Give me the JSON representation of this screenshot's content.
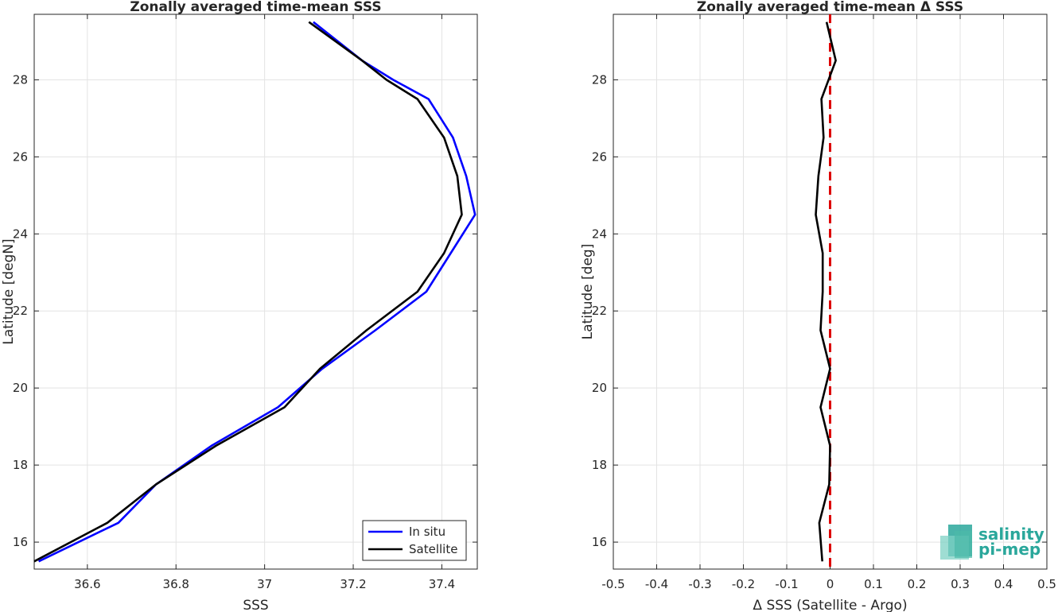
{
  "chart_data": [
    {
      "type": "line",
      "title": "Zonally averaged time-mean SSS",
      "xlabel": "SSS",
      "ylabel": "Latitude [degN]",
      "xlim": [
        36.48,
        37.48
      ],
      "ylim": [
        15.3,
        29.7
      ],
      "xticks": [
        "36.6",
        "36.8",
        "37",
        "37.2",
        "37.4"
      ],
      "xtick_values": [
        36.6,
        36.8,
        37.0,
        37.2,
        37.4
      ],
      "yticks": [
        "16",
        "18",
        "20",
        "22",
        "24",
        "26",
        "28"
      ],
      "ytick_values": [
        16,
        18,
        20,
        22,
        24,
        26,
        28
      ],
      "grid": true,
      "legend": "bottom-right",
      "series": [
        {
          "name": "In situ",
          "color": "#0000ff",
          "x": [
            36.49,
            36.67,
            36.755,
            36.88,
            37.03,
            37.13,
            37.25,
            37.365,
            37.42,
            37.475,
            37.455,
            37.425,
            37.37,
            37.29,
            37.22,
            37.11
          ],
          "y": [
            15.5,
            16.5,
            17.5,
            18.5,
            19.5,
            20.5,
            21.5,
            22.5,
            23.5,
            24.5,
            25.5,
            26.5,
            27.5,
            28.0,
            28.5,
            29.5
          ]
        },
        {
          "name": "Satellite",
          "color": "#000000",
          "x": [
            36.48,
            36.645,
            36.755,
            36.89,
            37.045,
            37.125,
            37.23,
            37.345,
            37.405,
            37.445,
            37.435,
            37.405,
            37.345,
            37.275,
            37.22,
            37.1
          ],
          "y": [
            15.5,
            16.5,
            17.5,
            18.5,
            19.5,
            20.5,
            21.5,
            22.5,
            23.5,
            24.5,
            25.5,
            26.5,
            27.5,
            28.0,
            28.5,
            29.5
          ]
        }
      ]
    },
    {
      "type": "line",
      "title": "Zonally averaged time-mean Δ SSS",
      "xlabel": "Δ SSS (Satellite - Argo)",
      "ylabel": "Latitude [deg]",
      "xlim": [
        -0.5,
        0.5
      ],
      "ylim": [
        15.3,
        29.7
      ],
      "xticks": [
        "-0.5",
        "-0.4",
        "-0.3",
        "-0.2",
        "-0.1",
        "0",
        "0.1",
        "0.2",
        "0.3",
        "0.4",
        "0.5"
      ],
      "xtick_values": [
        -0.5,
        -0.4,
        -0.3,
        -0.2,
        -0.1,
        0,
        0.1,
        0.2,
        0.3,
        0.4,
        0.5
      ],
      "yticks": [
        "16",
        "18",
        "20",
        "22",
        "24",
        "26",
        "28"
      ],
      "ytick_values": [
        16,
        18,
        20,
        22,
        24,
        26,
        28
      ],
      "grid": true,
      "reference_line": {
        "x": 0,
        "color": "#dd0000",
        "style": "dashed"
      },
      "series": [
        {
          "color": "#000000",
          "x": [
            -0.018,
            -0.025,
            -0.002,
            0.0,
            -0.022,
            0.0,
            -0.022,
            -0.017,
            -0.017,
            -0.033,
            -0.027,
            -0.015,
            -0.02,
            0.013,
            -0.008
          ],
          "y": [
            15.5,
            16.5,
            17.5,
            18.5,
            19.5,
            20.5,
            21.5,
            22.5,
            23.5,
            24.5,
            25.5,
            26.5,
            27.5,
            28.5,
            29.5
          ]
        }
      ]
    }
  ],
  "logo": {
    "line1": "salinity",
    "line2": "pi-mep"
  }
}
